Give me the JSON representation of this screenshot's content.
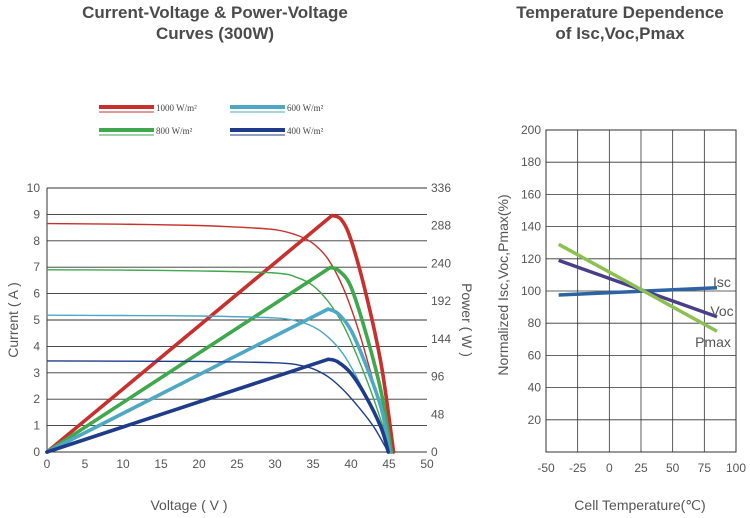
{
  "charts": [
    {
      "id": "iv",
      "title_lines": [
        "Current-Voltage & Power-Voltage",
        "Curves (300W)"
      ],
      "xlabel": "Voltage ( V )",
      "ylabel_left": "Current ( A )",
      "ylabel_right": "Power ( W )"
    },
    {
      "id": "temp",
      "title_lines": [
        "Temperature Dependence",
        "of Isc,Voc,Pmax"
      ],
      "xlabel": "Cell Temperature(℃)",
      "ylabel": "Normalized Isc,Voc,Pmax(%)"
    }
  ],
  "chart_data": [
    {
      "type": "line",
      "title": "Current-Voltage & Power-Voltage Curves (300W)",
      "xlabel": "Voltage ( V )",
      "ylabel": "Current ( A )",
      "y2label": "Power ( W )",
      "xlim": [
        0,
        50
      ],
      "ylim": [
        0,
        10
      ],
      "y2lim": [
        0,
        336
      ],
      "xticks": [
        0,
        5,
        10,
        15,
        20,
        25,
        30,
        35,
        40,
        45,
        50
      ],
      "yticks": [
        0,
        1,
        2,
        3,
        4,
        5,
        6,
        7,
        8,
        9,
        10
      ],
      "y2ticks": [
        0,
        48,
        96,
        144,
        192,
        240,
        288,
        336
      ],
      "grid": "horizontal",
      "legend_position": "top",
      "series": [
        {
          "name": "1000 W/m²",
          "color": "#c8302e",
          "iv": [
            [
              0,
              8.65
            ],
            [
              10,
              8.63
            ],
            [
              20,
              8.58
            ],
            [
              25,
              8.52
            ],
            [
              30,
              8.42
            ],
            [
              33,
              8.2
            ],
            [
              35,
              7.9
            ],
            [
              37,
              7.3
            ],
            [
              39,
              6.2
            ],
            [
              41,
              4.6
            ],
            [
              43,
              2.6
            ],
            [
              45.6,
              0
            ]
          ],
          "pv": [
            [
              0,
              0
            ],
            [
              37.5,
              301
            ],
            [
              38.7,
              296
            ],
            [
              40,
              270
            ],
            [
              42,
              200
            ],
            [
              44,
              110
            ],
            [
              45.6,
              0
            ]
          ]
        },
        {
          "name": "800 W/m²",
          "color": "#3fa84c",
          "iv": [
            [
              0,
              6.9
            ],
            [
              10,
              6.89
            ],
            [
              20,
              6.86
            ],
            [
              30,
              6.78
            ],
            [
              33,
              6.6
            ],
            [
              35,
              6.3
            ],
            [
              37,
              5.7
            ],
            [
              39,
              4.8
            ],
            [
              41,
              3.5
            ],
            [
              43,
              2.0
            ],
            [
              45.3,
              0
            ]
          ],
          "pv": [
            [
              0,
              0
            ],
            [
              37.3,
              235
            ],
            [
              38.5,
              230
            ],
            [
              40,
              210
            ],
            [
              42,
              150
            ],
            [
              44,
              75
            ],
            [
              45.3,
              0
            ]
          ]
        },
        {
          "name": "600 W/m²",
          "color": "#4fa8c3",
          "iv": [
            [
              0,
              5.18
            ],
            [
              10,
              5.17
            ],
            [
              20,
              5.15
            ],
            [
              30,
              5.08
            ],
            [
              33,
              4.95
            ],
            [
              35,
              4.75
            ],
            [
              37,
              4.35
            ],
            [
              39,
              3.7
            ],
            [
              41,
              2.7
            ],
            [
              43,
              1.5
            ],
            [
              45.1,
              0
            ]
          ],
          "pv": [
            [
              0,
              0
            ],
            [
              37,
              182
            ],
            [
              38.3,
              176
            ],
            [
              40,
              155
            ],
            [
              42,
              110
            ],
            [
              44,
              55
            ],
            [
              45.1,
              0
            ]
          ]
        },
        {
          "name": "400 W/m²",
          "color": "#1f3c8a",
          "iv": [
            [
              0,
              3.45
            ],
            [
              10,
              3.44
            ],
            [
              20,
              3.43
            ],
            [
              30,
              3.38
            ],
            [
              33,
              3.3
            ],
            [
              35,
              3.15
            ],
            [
              37,
              2.85
            ],
            [
              39,
              2.35
            ],
            [
              41,
              1.7
            ],
            [
              43,
              0.95
            ],
            [
              44.9,
              0
            ]
          ],
          "pv": [
            [
              0,
              0
            ],
            [
              37,
              118
            ],
            [
              38.2,
              115
            ],
            [
              40,
              100
            ],
            [
              42,
              70
            ],
            [
              44,
              30
            ],
            [
              44.9,
              0
            ]
          ]
        }
      ]
    },
    {
      "type": "line",
      "title": "Temperature Dependence of Isc,Voc,Pmax",
      "xlabel": "Cell Temperature(℃)",
      "ylabel": "Normalized Isc,Voc,Pmax(%)",
      "xlim": [
        -50,
        100
      ],
      "ylim": [
        0,
        200
      ],
      "xticks": [
        -50,
        -25,
        0,
        25,
        50,
        75,
        100
      ],
      "yticks": [
        20,
        40,
        60,
        80,
        100,
        120,
        140,
        160,
        180,
        200
      ],
      "grid": true,
      "series": [
        {
          "name": "Isc",
          "color": "#2d62a3",
          "points": [
            [
              -40,
              97.5
            ],
            [
              85,
              102
            ]
          ]
        },
        {
          "name": "Voc",
          "color": "#4a3d8a",
          "points": [
            [
              -40,
              119
            ],
            [
              85,
              84
            ]
          ]
        },
        {
          "name": "Pmax",
          "color": "#8cc152",
          "points": [
            [
              -40,
              129
            ],
            [
              85,
              75
            ]
          ]
        }
      ]
    }
  ]
}
